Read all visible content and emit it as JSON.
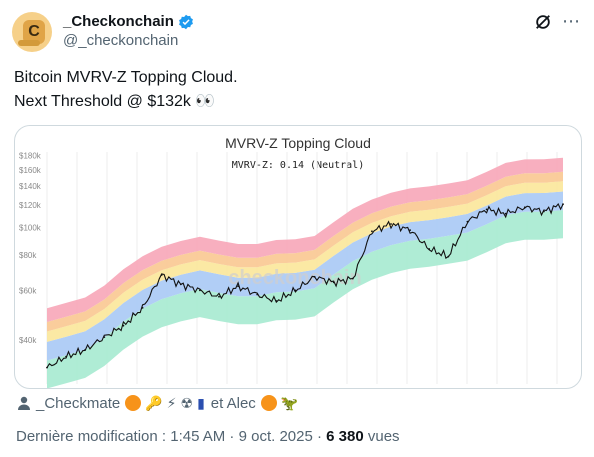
{
  "author": {
    "display_name": "_Checkonchain",
    "handle": "@_checkonchain",
    "avatar_letter": "C"
  },
  "tweet": {
    "line1": "Bitcoin MVRV-Z Topping Cloud.",
    "line2": "Next Threshold @ $132k",
    "line2_emoji": "👀"
  },
  "chart": {
    "title": "MVRV-Z Topping Cloud",
    "subtitle": "MVRV-Z: 0.14 (Neutral)",
    "watermark": "checkonchain",
    "y_tick_labels": [
      "$180k",
      "$160k",
      "$140k",
      "$120k",
      "$100k",
      "$80k",
      "$60k",
      "$40k"
    ]
  },
  "chart_data": {
    "type": "line",
    "title": "MVRV-Z Topping Cloud",
    "subtitle": "MVRV-Z: 0.14 (Neutral)",
    "y_scale": "log",
    "ylim": [
      28000,
      185000
    ],
    "y_ticks": [
      40000,
      60000,
      80000,
      100000,
      120000,
      140000,
      160000,
      180000
    ],
    "series": [
      {
        "values": [
          32000,
          35000,
          37000,
          41000,
          45000,
          52000,
          68000,
          63000,
          60000,
          57000,
          62000,
          58000,
          55000,
          60000,
          67000,
          64000,
          66000,
          97000,
          103000,
          98000,
          84000,
          79000,
          105000,
          116000,
          112000,
          118000,
          114000,
          121000
        ]
      }
    ],
    "bands": [
      "green",
      "blue",
      "yellow",
      "orange",
      "red"
    ],
    "colors": {
      "price": "#111111",
      "red": "#f7a6b8",
      "orange": "#f9c891",
      "yellow": "#fbe79a",
      "green": "#a6ead0",
      "blue": "#a9c9f5"
    }
  },
  "footer": {
    "community_label": "_Checkmate",
    "connector": "et Alec",
    "last_modified": "Dernière modification : 1:45 AM · 9 oct. 2025 · ",
    "views_count": "6 380",
    "views_label": " vues"
  },
  "icons": {
    "verified": "verified-badge-icon",
    "grok": "grok-icon",
    "more": "more-icon",
    "person": "person-icon"
  }
}
